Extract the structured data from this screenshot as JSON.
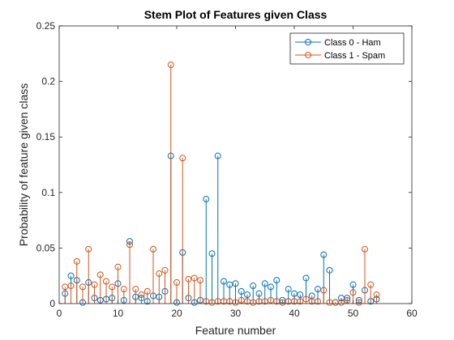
{
  "chart_data": {
    "type": "stem",
    "title": "Stem Plot of Features given Class",
    "xlabel": "Feature number",
    "ylabel": "Probability of feature given class",
    "xlim": [
      0,
      60
    ],
    "ylim": [
      0,
      0.25
    ],
    "xticks": [
      0,
      10,
      20,
      30,
      40,
      50,
      60
    ],
    "xtick_labels": [
      "0",
      "10",
      "20",
      "30",
      "40",
      "50",
      "60"
    ],
    "yticks": [
      0,
      0.05,
      0.1,
      0.15,
      0.2,
      0.25
    ],
    "ytick_labels": [
      "0",
      "0.05",
      "0.1",
      "0.15",
      "0.2",
      "0.25"
    ],
    "grid": false,
    "legend_position": "top-right",
    "x": [
      1,
      2,
      3,
      4,
      5,
      6,
      7,
      8,
      9,
      10,
      11,
      12,
      13,
      14,
      15,
      16,
      17,
      18,
      19,
      20,
      21,
      22,
      23,
      24,
      25,
      26,
      27,
      28,
      29,
      30,
      31,
      32,
      33,
      34,
      35,
      36,
      37,
      38,
      39,
      40,
      41,
      42,
      43,
      44,
      45,
      46,
      47,
      48,
      49,
      50,
      51,
      52,
      53,
      54
    ],
    "series": [
      {
        "name": "Class 0 - Ham",
        "color": "#0072BD",
        "values": [
          0.009,
          0.025,
          0.021,
          0.001,
          0.019,
          0.005,
          0.003,
          0.004,
          0.005,
          0.018,
          0.003,
          0.056,
          0.006,
          0.005,
          0.002,
          0.007,
          0.006,
          0.011,
          0.133,
          0.001,
          0.046,
          0.005,
          0.001,
          0.003,
          0.094,
          0.045,
          0.133,
          0.02,
          0.017,
          0.018,
          0.011,
          0.008,
          0.016,
          0.009,
          0.018,
          0.015,
          0.021,
          0.003,
          0.013,
          0.009,
          0.008,
          0.023,
          0.007,
          0.013,
          0.044,
          0.03,
          0.001,
          0.005,
          0.005,
          0.017,
          0.003,
          0.012,
          0.002,
          0.004
        ]
      },
      {
        "name": "Class 1 - Spam",
        "color": "#D95319",
        "values": [
          0.015,
          0.016,
          0.038,
          0.015,
          0.049,
          0.017,
          0.026,
          0.02,
          0.015,
          0.033,
          0.013,
          0.053,
          0.013,
          0.008,
          0.011,
          0.049,
          0.027,
          0.03,
          0.215,
          0.019,
          0.131,
          0.022,
          0.023,
          0.021,
          0.002,
          0.001,
          0.002,
          0.002,
          0.002,
          0.001,
          0.003,
          0.002,
          0.001,
          0.002,
          0.002,
          0.003,
          0.002,
          0.001,
          0.002,
          0.002,
          0.002,
          0.004,
          0.002,
          0.002,
          0.012,
          0.001,
          0.001,
          0.001,
          0.003,
          0.01,
          0.001,
          0.049,
          0.017,
          0.008
        ]
      }
    ]
  }
}
